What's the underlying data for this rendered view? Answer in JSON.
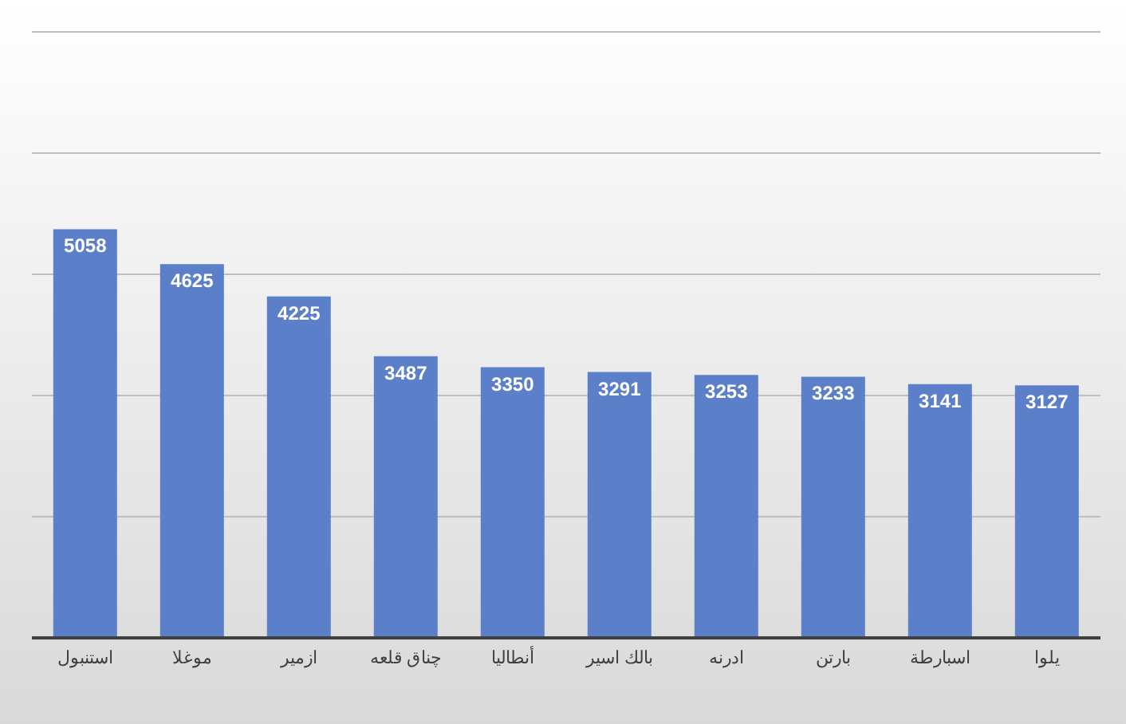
{
  "chart_data": {
    "type": "bar",
    "categories": [
      "استنبول",
      "موغلا",
      "ازمير",
      "چناق قلعه",
      "أنطاليا",
      "بالك اسير",
      "ادرنه",
      "بارتن",
      "اسبارطة",
      "يلوا"
    ],
    "values": [
      5058,
      4625,
      4225,
      3487,
      3350,
      3291,
      3253,
      3233,
      3141,
      3127
    ],
    "color": "#5b80c9",
    "data_labels": true,
    "grid": "y",
    "tick_labels": "x"
  }
}
